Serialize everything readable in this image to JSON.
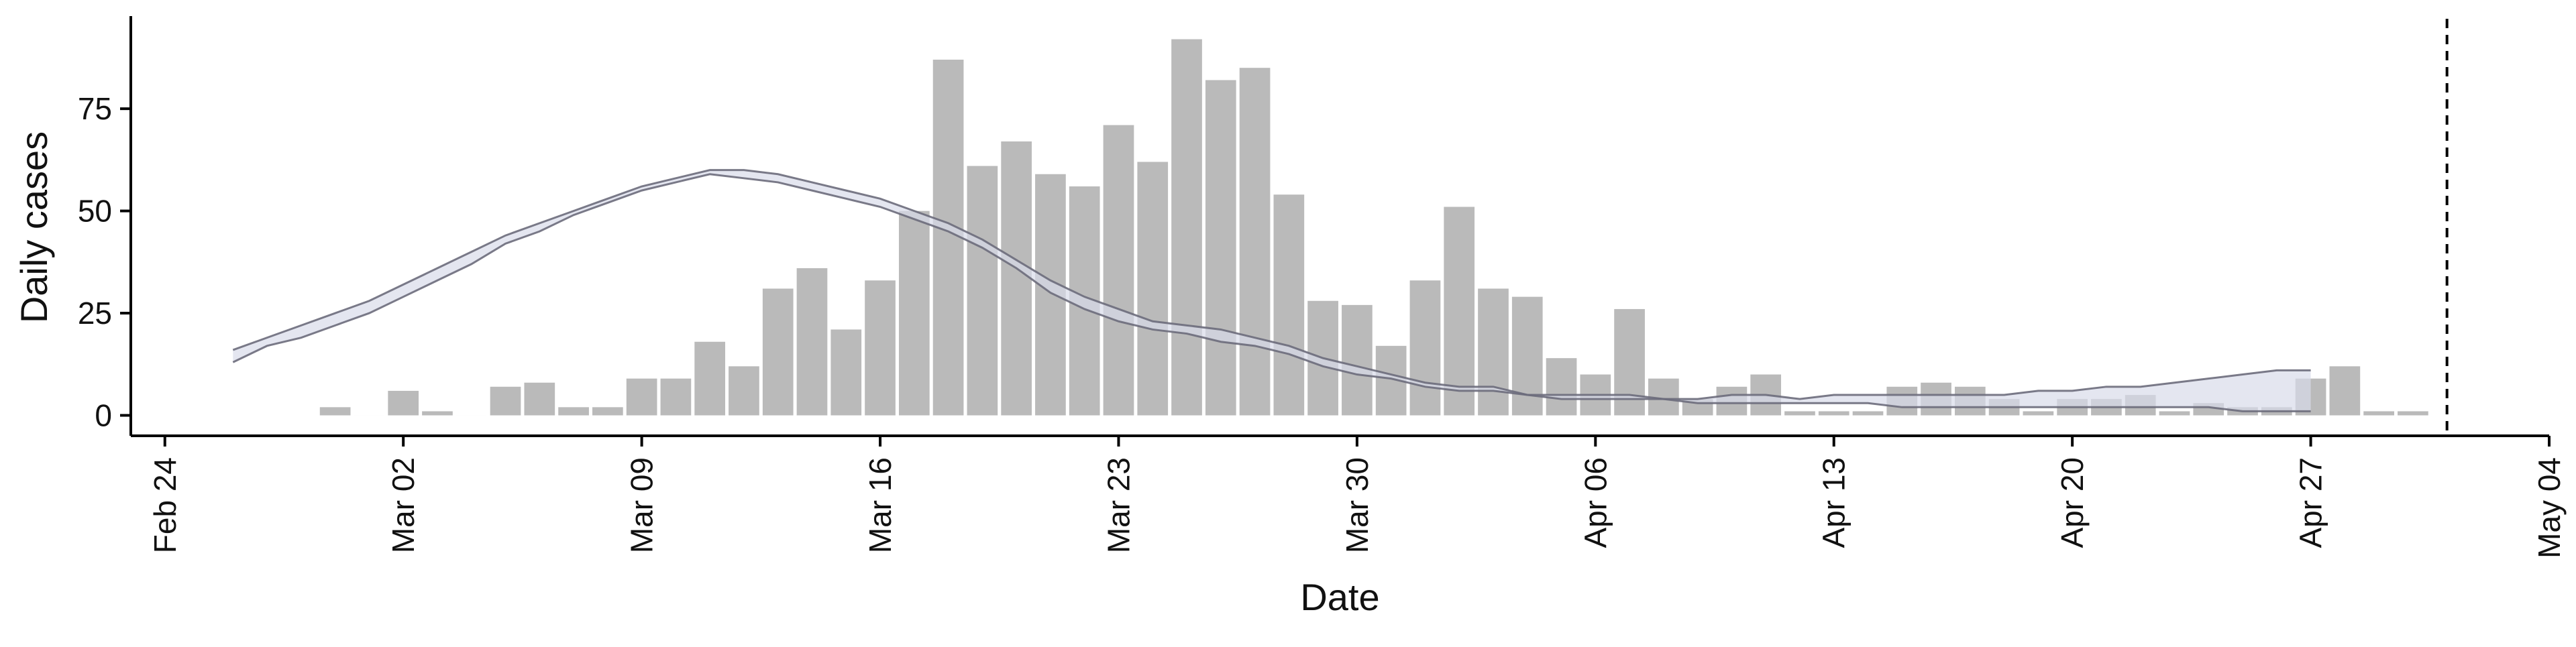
{
  "chart_data": {
    "type": "bar",
    "title": "",
    "xlabel": "Date",
    "ylabel": "Daily cases",
    "x_domain": [
      "2020-02-23",
      "2020-05-04"
    ],
    "ylim": [
      -5,
      97
    ],
    "x_ticks": [
      {
        "date": "2020-02-24",
        "label": "Feb 24"
      },
      {
        "date": "2020-03-02",
        "label": "Mar 02"
      },
      {
        "date": "2020-03-09",
        "label": "Mar 09"
      },
      {
        "date": "2020-03-16",
        "label": "Mar 16"
      },
      {
        "date": "2020-03-23",
        "label": "Mar 23"
      },
      {
        "date": "2020-03-30",
        "label": "Mar 30"
      },
      {
        "date": "2020-04-06",
        "label": "Apr 06"
      },
      {
        "date": "2020-04-13",
        "label": "Apr 13"
      },
      {
        "date": "2020-04-20",
        "label": "Apr 20"
      },
      {
        "date": "2020-04-27",
        "label": "Apr 27"
      },
      {
        "date": "2020-05-04",
        "label": "May 04"
      }
    ],
    "y_ticks": [
      0,
      25,
      50,
      75
    ],
    "grid": false,
    "legend": "none",
    "cases": {
      "start_date": "2020-02-29",
      "values": [
        2,
        0,
        6,
        1,
        0,
        7,
        8,
        2,
        2,
        9,
        9,
        18,
        12,
        31,
        36,
        21,
        33,
        50,
        87,
        61,
        67,
        59,
        56,
        71,
        62,
        92,
        82,
        85,
        54,
        28,
        27,
        17,
        33,
        51,
        31,
        29,
        14,
        10,
        26,
        9,
        4,
        7,
        10,
        1,
        1,
        1,
        7,
        8,
        7,
        4,
        1,
        4,
        4,
        5,
        1,
        3,
        2,
        2,
        9,
        12,
        1,
        1
      ]
    },
    "fit": {
      "start_date": "2020-02-26",
      "upper": [
        16,
        19,
        22,
        25,
        28,
        32,
        36,
        40,
        44,
        47,
        50,
        53,
        56,
        58,
        60,
        60,
        59,
        57,
        55,
        53,
        50,
        47,
        43,
        38,
        33,
        29,
        26,
        23,
        22,
        21,
        19,
        17,
        14,
        12,
        10,
        8,
        7,
        7,
        5,
        5,
        5,
        5,
        4,
        4,
        5,
        5,
        4,
        5,
        5,
        5,
        5,
        5,
        5,
        6,
        6,
        7,
        7,
        8,
        9,
        10,
        11,
        11
      ],
      "lower": [
        13,
        17,
        19,
        22,
        25,
        29,
        33,
        37,
        42,
        45,
        49,
        52,
        55,
        57,
        59,
        58,
        57,
        55,
        53,
        51,
        48,
        45,
        41,
        36,
        30,
        26,
        23,
        21,
        20,
        18,
        17,
        15,
        12,
        10,
        9,
        7,
        6,
        6,
        5,
        4,
        4,
        4,
        4,
        3,
        3,
        3,
        3,
        3,
        3,
        2,
        2,
        2,
        2,
        2,
        2,
        2,
        2,
        2,
        2,
        1,
        1,
        1
      ]
    },
    "vline_date": "2020-05-01",
    "colors": {
      "bar": "#bababa",
      "band_fill": "#d9dbea",
      "band_line": "#6b6b7b",
      "axis": "#000000",
      "vline": "#000000"
    }
  }
}
